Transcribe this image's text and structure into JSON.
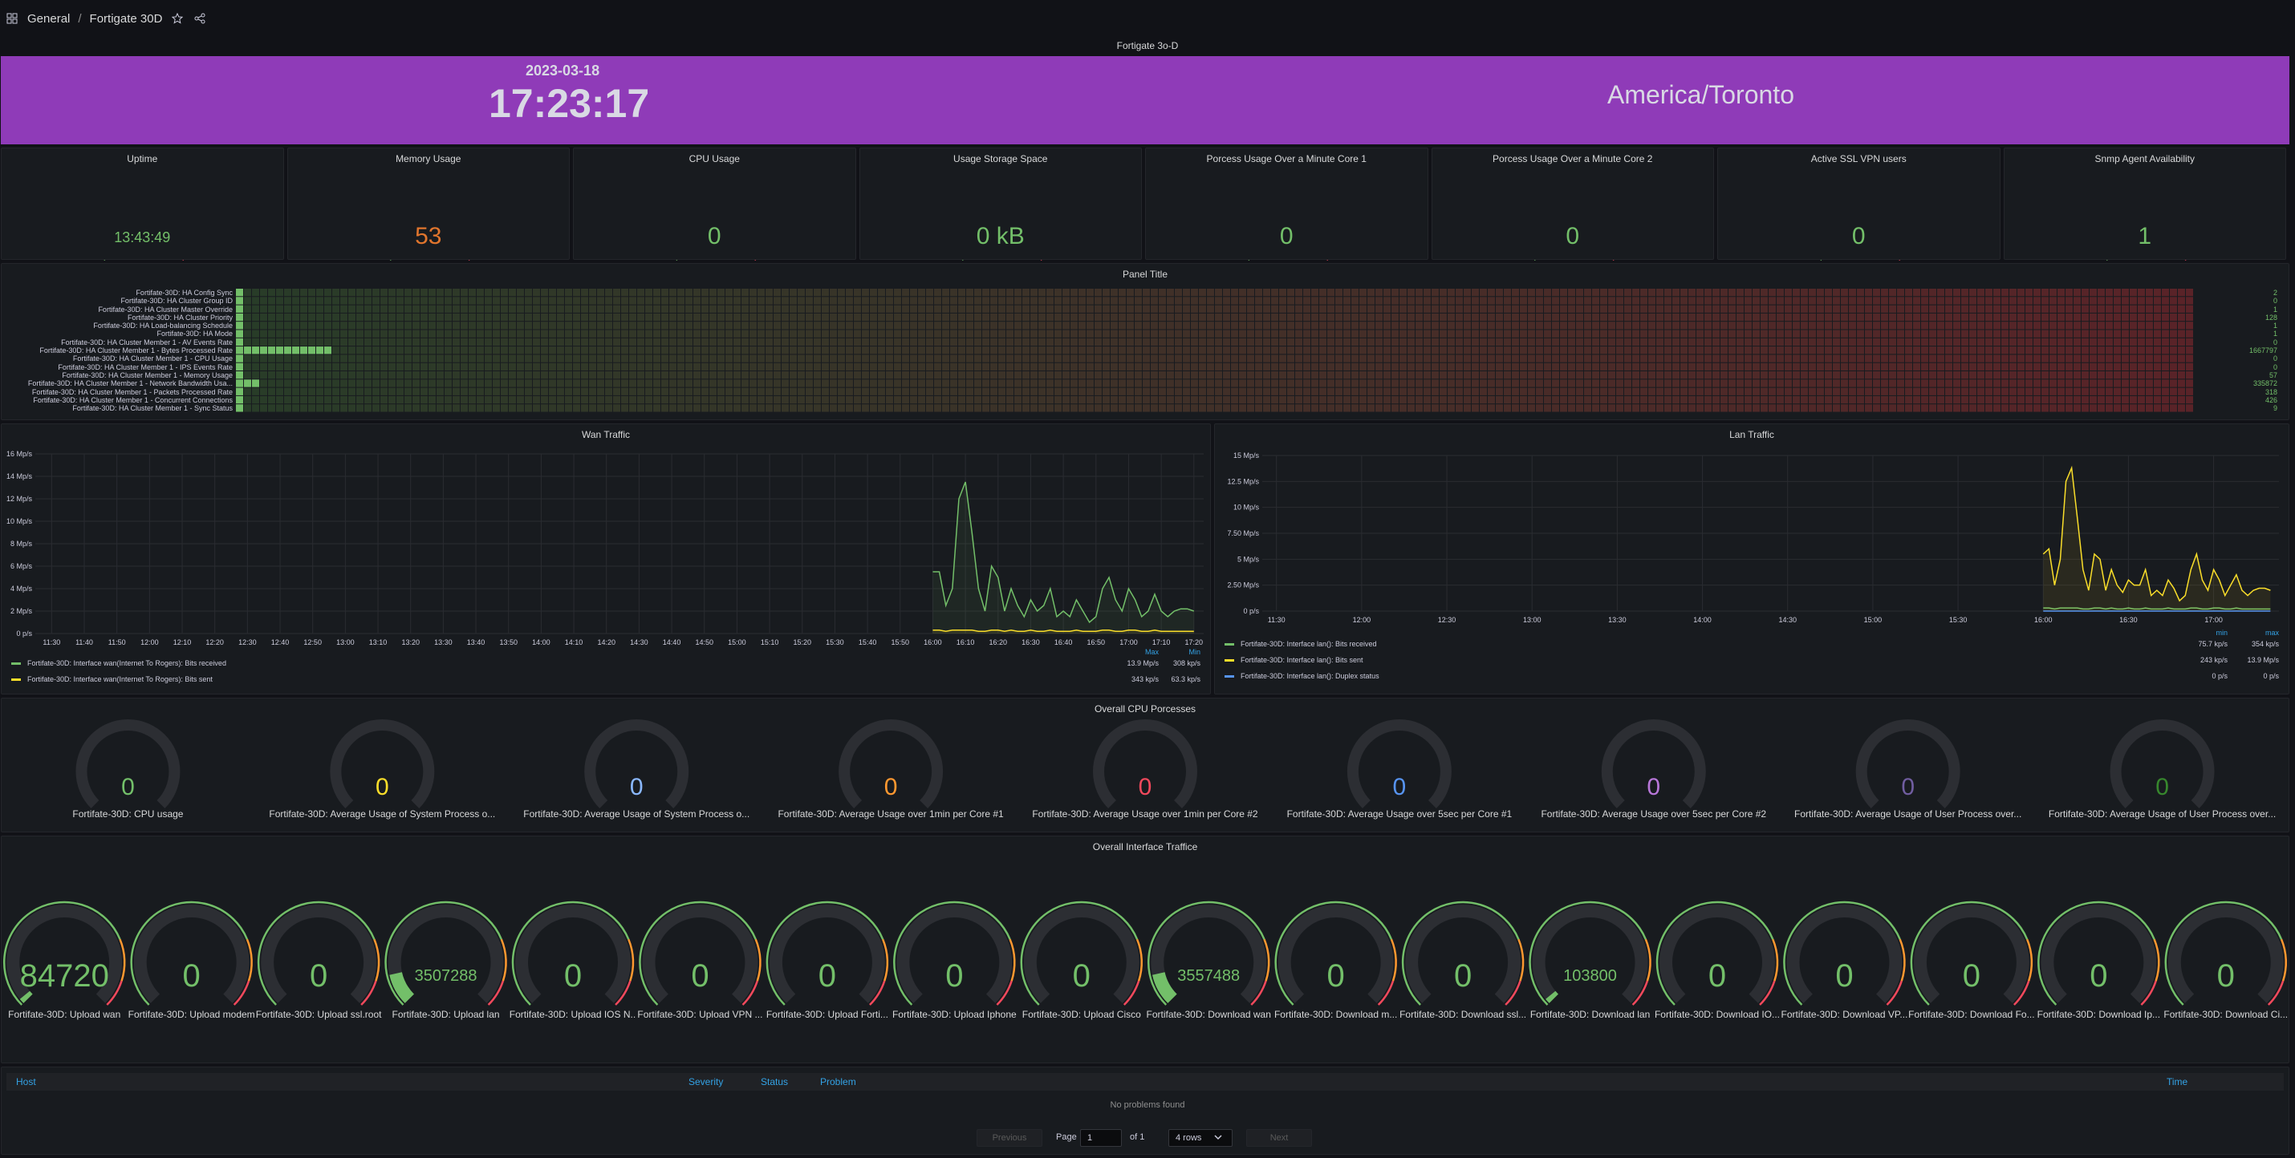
{
  "header": {
    "breadcrumb_root": "General",
    "breadcrumb_sep": "/",
    "dashboard_title": "Fortigate 30D"
  },
  "clock": {
    "panel_title": "Fortigate 3o-D",
    "date": "2023-03-18",
    "time": "17:23:17",
    "timezone": "America/Toronto",
    "bg_color": "#8f3bb8"
  },
  "stat_gauges": [
    {
      "title": "Uptime",
      "value": "13:43:49",
      "fill": 1.0,
      "color": "#73bf69"
    },
    {
      "title": "Memory Usage",
      "value": "53",
      "fill": 0.53,
      "color": "#e0752d"
    },
    {
      "title": "CPU Usage",
      "value": "0",
      "fill": 0,
      "color": "#73bf69"
    },
    {
      "title": "Usage Storage Space",
      "value": "0 kB",
      "fill": 0,
      "color": "#73bf69"
    },
    {
      "title": "Porcess Usage Over a Minute Core 1",
      "value": "0",
      "fill": 0,
      "color": "#73bf69"
    },
    {
      "title": "Porcess Usage Over a Minute Core 2",
      "value": "0",
      "fill": 0,
      "color": "#73bf69"
    },
    {
      "title": "Active SSL VPN users",
      "value": "0",
      "fill": 0,
      "color": "#73bf69"
    },
    {
      "title": "Snmp Agent Availability",
      "value": "1",
      "fill": 0,
      "color": "#73bf69"
    }
  ],
  "heatmap": {
    "title": "Panel Title",
    "rows": [
      {
        "label": "Fortifate-30D: HA Config Sync",
        "value": "2"
      },
      {
        "label": "Fortifate-30D: HA Cluster Group ID",
        "value": "0"
      },
      {
        "label": "Fortifate-30D: HA Cluster Master Override",
        "value": "1"
      },
      {
        "label": "Fortifate-30D: HA Cluster Priority",
        "value": "128"
      },
      {
        "label": "Fortifate-30D: HA Load-balancing Schedule",
        "value": "1"
      },
      {
        "label": "Fortifate-30D: HA Mode",
        "value": "1"
      },
      {
        "label": "Fortifate-30D: HA Cluster Member 1 - AV Events Rate",
        "value": "0"
      },
      {
        "label": "Fortifate-30D: HA Cluster Member 1 - Bytes Processed Rate",
        "value": "1667797"
      },
      {
        "label": "Fortifate-30D: HA Cluster Member 1 - CPU Usage",
        "value": "0"
      },
      {
        "label": "Fortifate-30D: HA Cluster Member 1 - IPS Events Rate",
        "value": "0"
      },
      {
        "label": "Fortifate-30D: HA Cluster Member 1 - Memory Usage",
        "value": "57"
      },
      {
        "label": "Fortifate-30D: HA Cluster Member 1 - Network Bandwidth Usa...",
        "value": "335872"
      },
      {
        "label": "Fortifate-30D: HA Cluster Member 1 - Packets Processed Rate",
        "value": "318"
      },
      {
        "label": "Fortifate-30D: HA Cluster Member 1 - Concurrent Connections",
        "value": "426"
      },
      {
        "label": "Fortifate-30D: HA Cluster Member 1 - Sync Status",
        "value": "9"
      }
    ]
  },
  "chart_data": [
    {
      "type": "line",
      "title": "Wan Traffic",
      "y_ticks": [
        "0 p/s",
        "2 Mp/s",
        "4 Mp/s",
        "6 Mp/s",
        "8 Mp/s",
        "10 Mp/s",
        "12 Mp/s",
        "14 Mp/s",
        "16 Mp/s"
      ],
      "ylim": [
        0,
        16
      ],
      "x_ticks": [
        "11:30",
        "11:40",
        "11:50",
        "12:00",
        "12:10",
        "12:20",
        "12:30",
        "12:40",
        "12:50",
        "13:00",
        "13:10",
        "13:20",
        "13:30",
        "13:40",
        "13:50",
        "14:00",
        "14:10",
        "14:20",
        "14:30",
        "14:40",
        "14:50",
        "15:00",
        "15:10",
        "15:20",
        "15:30",
        "15:40",
        "15:50",
        "16:00",
        "16:10",
        "16:20",
        "16:30",
        "16:40",
        "16:50",
        "17:00",
        "17:10",
        "17:20"
      ],
      "x_range": [
        "11:25",
        "17:23"
      ],
      "x": [
        "16:00",
        "16:02",
        "16:04",
        "16:06",
        "16:08",
        "16:10",
        "16:12",
        "16:14",
        "16:16",
        "16:18",
        "16:20",
        "16:22",
        "16:24",
        "16:26",
        "16:28",
        "16:30",
        "16:32",
        "16:34",
        "16:36",
        "16:38",
        "16:40",
        "16:42",
        "16:44",
        "16:46",
        "16:48",
        "16:50",
        "16:52",
        "16:54",
        "16:56",
        "16:58",
        "17:00",
        "17:02",
        "17:04",
        "17:06",
        "17:08",
        "17:10",
        "17:12",
        "17:14",
        "17:16",
        "17:18",
        "17:20"
      ],
      "series": [
        {
          "name": "Fortifate-30D: Interface wan(Internet To Rogers): Bits received",
          "color": "#73bf69",
          "values": [
            5.5,
            5.5,
            2.5,
            4,
            12,
            13.5,
            9,
            4,
            2,
            6,
            5,
            2,
            4,
            2.5,
            1.5,
            3,
            2,
            2.5,
            4,
            1.5,
            2,
            1.5,
            3,
            2,
            1,
            1.5,
            4,
            5,
            3,
            2,
            4,
            3,
            1.5,
            2,
            3.5,
            2,
            1.5,
            2,
            2.2,
            2.2,
            2
          ]
        },
        {
          "name": "Fortifate-30D: Interface wan(Internet To Rogers): Bits sent",
          "color": "#fade2a",
          "values": [
            0.3,
            0.3,
            0.2,
            0.3,
            0.3,
            0.3,
            0.3,
            0.2,
            0.2,
            0.3,
            0.3,
            0.2,
            0.3,
            0.2,
            0.2,
            0.3,
            0.2,
            0.2,
            0.3,
            0.2,
            0.2,
            0.2,
            0.3,
            0.2,
            0.2,
            0.2,
            0.3,
            0.3,
            0.2,
            0.2,
            0.3,
            0.3,
            0.2,
            0.2,
            0.3,
            0.2,
            0.2,
            0.2,
            0.2,
            0.2,
            0.2
          ]
        }
      ],
      "legend": {
        "headers": [
          "Max",
          "Min"
        ],
        "rows": [
          {
            "name": "Fortifate-30D: Interface wan(Internet To Rogers): Bits received",
            "max": "13.9 Mp/s",
            "min": "308 kp/s"
          },
          {
            "name": "Fortifate-30D: Interface wan(Internet To Rogers): Bits sent",
            "max": "343 kp/s",
            "min": "63.3 kp/s"
          }
        ]
      }
    },
    {
      "type": "line",
      "title": "Lan Traffic",
      "y_ticks": [
        "0 p/s",
        "2.50 Mp/s",
        "5 Mp/s",
        "7.50 Mp/s",
        "10 Mp/s",
        "12.5 Mp/s",
        "15 Mp/s"
      ],
      "ylim": [
        0,
        15
      ],
      "x_ticks": [
        "11:30",
        "12:00",
        "12:30",
        "13:00",
        "13:30",
        "14:00",
        "14:30",
        "15:00",
        "15:30",
        "16:00",
        "16:30",
        "17:00"
      ],
      "x_range": [
        "11:25",
        "17:23"
      ],
      "x": [
        "16:00",
        "16:02",
        "16:04",
        "16:06",
        "16:08",
        "16:10",
        "16:12",
        "16:14",
        "16:16",
        "16:18",
        "16:20",
        "16:22",
        "16:24",
        "16:26",
        "16:28",
        "16:30",
        "16:32",
        "16:34",
        "16:36",
        "16:38",
        "16:40",
        "16:42",
        "16:44",
        "16:46",
        "16:48",
        "16:50",
        "16:52",
        "16:54",
        "16:56",
        "16:58",
        "17:00",
        "17:02",
        "17:04",
        "17:06",
        "17:08",
        "17:10",
        "17:12",
        "17:14",
        "17:16",
        "17:18",
        "17:20"
      ],
      "series": [
        {
          "name": "Fortifate-30D: Interface lan(): Bits received",
          "color": "#73bf69",
          "values": [
            0.3,
            0.3,
            0.2,
            0.3,
            0.3,
            0.3,
            0.3,
            0.2,
            0.2,
            0.3,
            0.3,
            0.2,
            0.3,
            0.2,
            0.2,
            0.3,
            0.2,
            0.2,
            0.3,
            0.2,
            0.2,
            0.2,
            0.3,
            0.2,
            0.2,
            0.2,
            0.3,
            0.3,
            0.2,
            0.2,
            0.3,
            0.3,
            0.2,
            0.2,
            0.3,
            0.2,
            0.2,
            0.2,
            0.2,
            0.2,
            0.2
          ]
        },
        {
          "name": "Fortifate-30D: Interface lan(): Bits sent",
          "color": "#fade2a",
          "values": [
            5.5,
            6,
            2.5,
            5,
            12.5,
            13.8,
            9,
            4,
            2,
            5.5,
            5,
            2,
            4,
            2.5,
            1.8,
            3,
            2.5,
            2.5,
            4,
            1.5,
            2,
            1.5,
            3,
            2.2,
            1,
            1.5,
            4,
            5.5,
            3,
            2,
            4,
            3,
            1.5,
            2.5,
            3.5,
            2,
            1.5,
            2,
            2.2,
            2.2,
            2
          ]
        },
        {
          "name": "Fortifate-30D: Interface lan(): Duplex status",
          "color": "#5794f2",
          "values": [
            0,
            0,
            0,
            0,
            0,
            0,
            0,
            0,
            0,
            0,
            0,
            0,
            0,
            0,
            0,
            0,
            0,
            0,
            0,
            0,
            0,
            0,
            0,
            0,
            0,
            0,
            0,
            0,
            0,
            0,
            0,
            0,
            0,
            0,
            0,
            0,
            0,
            0,
            0,
            0,
            0
          ]
        }
      ],
      "legend": {
        "headers": [
          "min",
          "max"
        ],
        "rows": [
          {
            "name": "Fortifate-30D: Interface lan(): Bits received",
            "min": "75.7 kp/s",
            "max": "354 kp/s"
          },
          {
            "name": "Fortifate-30D: Interface lan(): Bits sent",
            "min": "243 kp/s",
            "max": "13.9 Mp/s"
          },
          {
            "name": "Fortifate-30D: Interface lan(): Duplex status",
            "min": "0 p/s",
            "max": "0 p/s"
          }
        ]
      }
    }
  ],
  "cpu_panel": {
    "title": "Overall CPU Porcesses",
    "gauges": [
      {
        "label": "Fortifate-30D: CPU usage",
        "value": "0",
        "color": "#73bf69"
      },
      {
        "label": "Fortifate-30D: Average Usage of System Process o...",
        "value": "0",
        "color": "#fade2a"
      },
      {
        "label": "Fortifate-30D: Average Usage of System Process o...",
        "value": "0",
        "color": "#8ab8ff"
      },
      {
        "label": "Fortifate-30D: Average Usage over 1min per Core #1",
        "value": "0",
        "color": "#ff9830"
      },
      {
        "label": "Fortifate-30D: Average Usage over 1min per Core #2",
        "value": "0",
        "color": "#f2495c"
      },
      {
        "label": "Fortifate-30D: Average Usage over 5sec per Core #1",
        "value": "0",
        "color": "#5794f2"
      },
      {
        "label": "Fortifate-30D: Average Usage over 5sec per Core #2",
        "value": "0",
        "color": "#b877d9"
      },
      {
        "label": "Fortifate-30D: Average Usage of User Process over...",
        "value": "0",
        "color": "#705da0"
      },
      {
        "label": "Fortifate-30D: Average Usage of User Process over...",
        "value": "0",
        "color": "#37872d"
      }
    ]
  },
  "iface_panel": {
    "title": "Overall Interface Traffice",
    "gauges": [
      {
        "label": "Fortifate-30D: Upload wan",
        "value": "84720",
        "fill": 0.02
      },
      {
        "label": "Fortifate-30D: Upload modem",
        "value": "0",
        "fill": 0
      },
      {
        "label": "Fortifate-30D: Upload ssl.root",
        "value": "0",
        "fill": 0
      },
      {
        "label": "Fortifate-30D: Upload lan",
        "value": "3507288",
        "fill": 0.12
      },
      {
        "label": "Fortifate-30D: Upload IOS N...",
        "value": "0",
        "fill": 0
      },
      {
        "label": "Fortifate-30D: Upload VPN ...",
        "value": "0",
        "fill": 0
      },
      {
        "label": "Fortifate-30D: Upload Forti...",
        "value": "0",
        "fill": 0
      },
      {
        "label": "Fortifate-30D: Upload Iphone",
        "value": "0",
        "fill": 0
      },
      {
        "label": "Fortifate-30D: Upload Cisco",
        "value": "0",
        "fill": 0
      },
      {
        "label": "Fortifate-30D: Download wan",
        "value": "3557488",
        "fill": 0.12
      },
      {
        "label": "Fortifate-30D: Download m...",
        "value": "0",
        "fill": 0
      },
      {
        "label": "Fortifate-30D: Download ssl...",
        "value": "0",
        "fill": 0
      },
      {
        "label": "Fortifate-30D: Download lan",
        "value": "103800",
        "fill": 0.02
      },
      {
        "label": "Fortifate-30D: Download IO...",
        "value": "0",
        "fill": 0
      },
      {
        "label": "Fortifate-30D: Download VP...",
        "value": "0",
        "fill": 0
      },
      {
        "label": "Fortifate-30D: Download Fo...",
        "value": "0",
        "fill": 0
      },
      {
        "label": "Fortifate-30D: Download Ip...",
        "value": "0",
        "fill": 0
      },
      {
        "label": "Fortifate-30D: Download Ci...",
        "value": "0",
        "fill": 0
      }
    ]
  },
  "problems": {
    "columns": {
      "host": "Host",
      "severity": "Severity",
      "status": "Status",
      "problem": "Problem",
      "time": "Time"
    },
    "empty_text": "No problems found",
    "pager": {
      "previous": "Previous",
      "page_label": "Page",
      "page": "1",
      "of_label": "of 1",
      "rows": "4 rows",
      "next": "Next"
    }
  }
}
